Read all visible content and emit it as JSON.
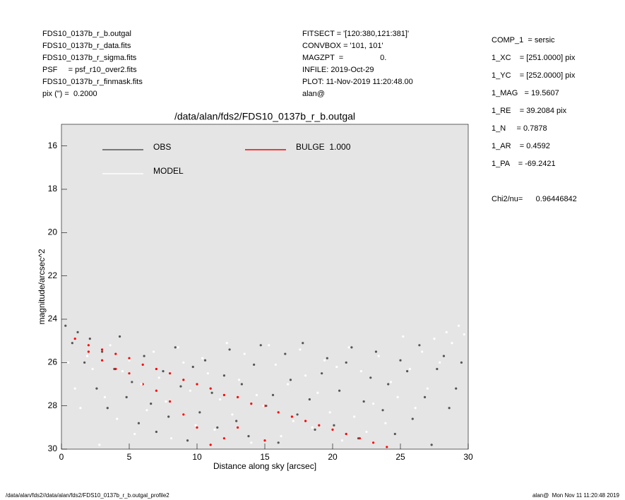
{
  "header": {
    "left": [
      "FDS10_0137b_r_b.outgal",
      "FDS10_0137b_r_data.fits",
      "FDS10_0137b_r_sigma.fits",
      "PSF     = psf_r10_over2.fits",
      "FDS10_0137b_r_finmask.fits",
      "pix (\") =  0.2000"
    ],
    "middle": [
      "FITSECT = '[120:380,121:381]'",
      "CONVBOX = '101, 101'",
      "MAGZPT  =                 0.",
      "INFILE: 2019-Oct-29",
      "PLOT: 11-Nov-2019 11:20:48.00",
      "alan@"
    ],
    "right": [
      "COMP_1  = sersic",
      "1_XC    = [251.0000] pix",
      "1_YC    = [252.0000] pix",
      "1_MAG   = 19.5607",
      "1_RE    = 39.2084 pix",
      "1_N     = 0.7878",
      "1_AR    = 0.4592",
      "1_PA    = -69.2421",
      "",
      "Chi2/nu=      0.96446842"
    ]
  },
  "footer": {
    "left": "/data/alan/fds2//data/alan/fds2/FDS10_0137b_r_b.outgal_profile2",
    "right": "alan@  Mon Nov 11 11:20:48 2019"
  },
  "chart_data": {
    "type": "scatter",
    "title": "/data/alan/fds2/FDS10_0137b_r_b.outgal",
    "x_label": "Distance along sky [arcsec]",
    "y_label": "magnitude/arcsec^2",
    "xlim": [
      0,
      30
    ],
    "xticks": [
      0,
      5,
      10,
      15,
      20,
      25,
      30
    ],
    "ylim": [
      15,
      30
    ],
    "yticks": [
      16,
      18,
      20,
      22,
      24,
      26,
      28,
      30
    ],
    "y_inverted": true,
    "plot_background": "#e5e5e5",
    "series": [
      {
        "name": "OBS",
        "color": "#555555",
        "x": [
          0.3,
          0.8,
          1.2,
          1.7,
          2.1,
          2.6,
          3.0,
          3.4,
          3.9,
          4.3,
          4.8,
          5.2,
          5.7,
          6.1,
          6.6,
          7.0,
          7.5,
          7.9,
          8.4,
          8.8,
          9.3,
          9.7,
          10.2,
          10.6,
          11.1,
          11.5,
          12.0,
          12.4,
          12.9,
          13.3,
          13.8,
          14.2,
          14.7,
          15.1,
          15.6,
          16.0,
          16.5,
          16.9,
          17.4,
          17.8,
          18.3,
          18.7,
          19.2,
          19.6,
          20.1,
          20.5,
          21.0,
          21.4,
          21.9,
          22.3,
          22.8,
          23.2,
          23.7,
          24.1,
          24.6,
          25.0,
          25.5,
          25.9,
          26.4,
          26.8,
          27.3,
          27.7,
          28.2,
          28.6,
          29.1,
          29.5
        ],
        "values": [
          24.3,
          25.1,
          24.6,
          26.0,
          24.9,
          27.2,
          25.5,
          28.1,
          26.3,
          24.8,
          27.6,
          26.9,
          28.8,
          25.7,
          27.9,
          29.2,
          26.4,
          28.5,
          25.3,
          27.1,
          29.6,
          26.2,
          28.3,
          25.9,
          27.4,
          29.0,
          26.6,
          25.4,
          28.7,
          27.0,
          29.4,
          26.1,
          25.2,
          28.0,
          27.5,
          29.7,
          25.6,
          26.8,
          28.4,
          25.1,
          27.7,
          29.1,
          26.5,
          25.8,
          28.9,
          27.3,
          26.0,
          25.3,
          29.5,
          27.8,
          26.7,
          25.5,
          28.2,
          27.0,
          29.3,
          25.9,
          26.4,
          28.6,
          25.2,
          27.6,
          29.8,
          26.3,
          25.7,
          28.1,
          27.2,
          26.0
        ]
      },
      {
        "name": "BULGE  1.000",
        "color": "#ff0000",
        "x": [
          1,
          2,
          2,
          3,
          3,
          4,
          4,
          5,
          5,
          6,
          6,
          7,
          7,
          8,
          8,
          9,
          9,
          10,
          10,
          11,
          11,
          12,
          12,
          13,
          13,
          14,
          15,
          15,
          16,
          17,
          18,
          19,
          20,
          21,
          22,
          23,
          24
        ],
        "values": [
          24.9,
          25.2,
          25.5,
          25.4,
          25.9,
          25.6,
          26.3,
          25.8,
          26.5,
          26.1,
          27.0,
          26.3,
          27.3,
          26.5,
          27.8,
          26.8,
          28.4,
          27.0,
          29.0,
          27.2,
          29.8,
          27.5,
          29.5,
          27.6,
          29.0,
          27.9,
          28.0,
          29.6,
          28.3,
          28.5,
          28.7,
          28.9,
          29.1,
          29.3,
          29.5,
          29.7,
          29.9
        ]
      },
      {
        "name": "MODEL",
        "color": "#ffffff",
        "x": [
          0.5,
          1.0,
          1.4,
          1.9,
          2.3,
          2.8,
          3.2,
          3.6,
          4.1,
          4.5,
          5.0,
          5.4,
          5.9,
          6.3,
          6.8,
          7.2,
          7.7,
          8.1,
          8.6,
          9.0,
          9.5,
          9.9,
          10.4,
          10.8,
          11.3,
          11.7,
          12.2,
          12.6,
          13.1,
          13.5,
          14.0,
          14.4,
          14.9,
          15.3,
          15.8,
          16.2,
          16.7,
          17.1,
          17.6,
          18.0,
          18.5,
          18.9,
          19.4,
          19.8,
          20.3,
          20.7,
          21.2,
          21.6,
          22.1,
          22.5,
          23.0,
          23.4,
          23.9,
          24.3,
          24.8,
          25.2,
          25.7,
          26.1,
          26.6,
          27.0,
          27.5,
          27.9,
          28.4,
          28.8,
          29.3,
          29.7
        ],
        "values": [
          26.0,
          27.2,
          28.1,
          25.7,
          26.3,
          29.8,
          27.6,
          25.2,
          28.6,
          26.4,
          25.9,
          29.3,
          27.0,
          28.2,
          25.5,
          26.7,
          27.8,
          29.5,
          25.3,
          26.0,
          27.3,
          28.9,
          25.8,
          26.5,
          29.1,
          27.7,
          25.1,
          28.4,
          26.8,
          25.6,
          29.7,
          27.5,
          28.0,
          25.2,
          26.1,
          29.4,
          27.0,
          28.7,
          25.4,
          26.6,
          29.0,
          27.4,
          25.9,
          28.3,
          26.2,
          29.6,
          25.3,
          28.5,
          26.4,
          29.2,
          27.9,
          25.7,
          28.8,
          26.9,
          27.6,
          24.8,
          26.3,
          28.1,
          25.5,
          27.2,
          24.9,
          26.0,
          24.6,
          25.1,
          24.3,
          24.7
        ]
      }
    ]
  }
}
